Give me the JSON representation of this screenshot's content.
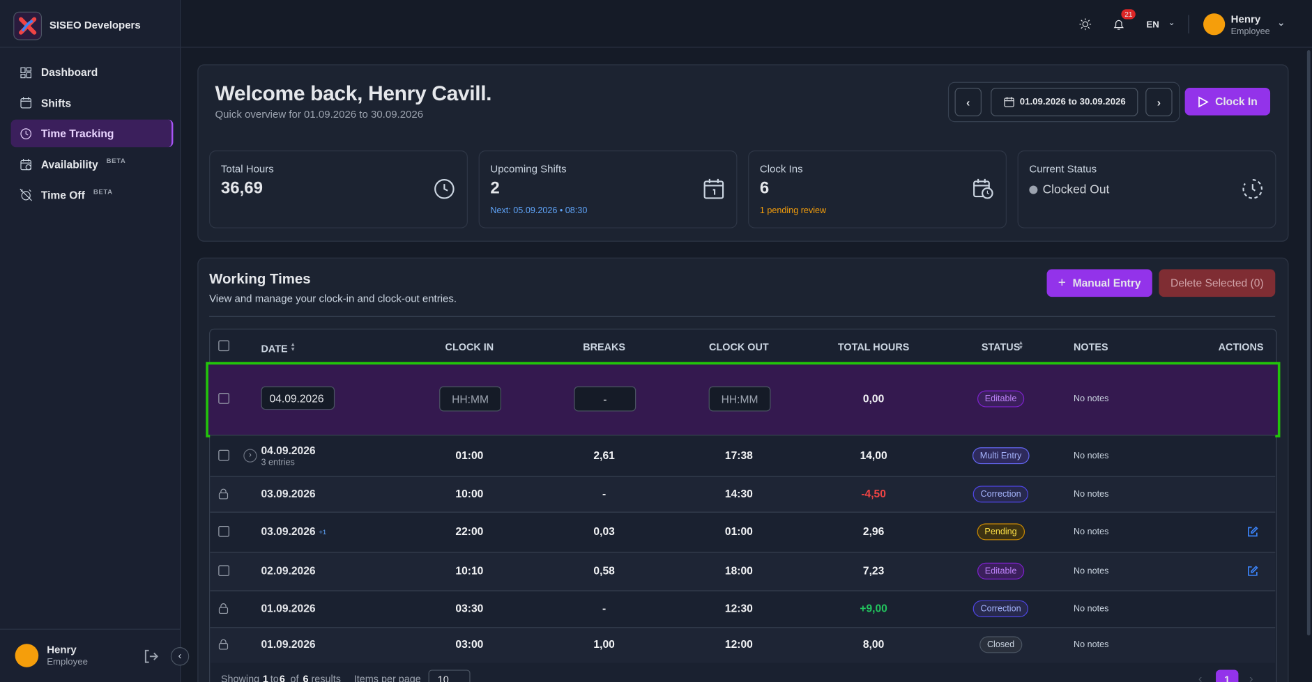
{
  "sidebar": {
    "brand": "SISEO Developers",
    "nav": [
      {
        "label": "Dashboard"
      },
      {
        "label": "Shifts"
      },
      {
        "label": "Time Tracking",
        "active": true
      },
      {
        "label": "Availability",
        "badge": "BETA"
      },
      {
        "label": "Time Off",
        "badge": "BETA"
      }
    ],
    "user": {
      "name": "Henry",
      "role": "Employee"
    }
  },
  "header": {
    "notifications": "21",
    "language": "EN",
    "user": {
      "name": "Henry",
      "role": "Employee"
    }
  },
  "welcome": {
    "title": "Welcome back, Henry Cavill.",
    "subtitle": "Quick overview for 01.09.2026 to 30.09.2026",
    "date_range": "01.09.2026 to 30.09.2026",
    "clock_in": "Clock In"
  },
  "stats": [
    {
      "label": "Total Hours",
      "value": "36,69"
    },
    {
      "label": "Upcoming Shifts",
      "value": "2",
      "note": "Next: 05.09.2026 • 08:30",
      "note_color": "#60a5fa"
    },
    {
      "label": "Clock Ins",
      "value": "6",
      "note": "1 pending review",
      "note_color": "#f59e0b"
    },
    {
      "label": "Current Status",
      "value": "Clocked Out"
    }
  ],
  "working_times": {
    "title": "Working Times",
    "subtitle": "View and manage your clock-in and clock-out entries.",
    "manual_entry": "Manual Entry",
    "delete_selected": "Delete Selected (0)",
    "columns": [
      "DATE",
      "CLOCK IN",
      "BREAKS",
      "CLOCK OUT",
      "TOTAL HOURS",
      "STATUS",
      "NOTES",
      "ACTIONS"
    ],
    "edit_row": {
      "date": "04.09.2026",
      "clock_in": "HH:MM",
      "breaks": "-",
      "clock_out": "HH:MM",
      "total": "0,00",
      "status": "Editable",
      "notes": "No notes"
    },
    "rows": [
      {
        "date": "04.09.2026",
        "sub": "3 entries",
        "clock_in": "01:00",
        "breaks": "2,61",
        "clock_out": "17:38",
        "total": "14,00",
        "status": "Multi Entry",
        "notes": "No notes",
        "expandable": true
      },
      {
        "date": "03.09.2026",
        "clock_in": "10:00",
        "breaks": "-",
        "clock_out": "14:30",
        "total": "-4,50",
        "total_color": "#ef4444",
        "status": "Correction",
        "notes": "No notes",
        "locked": true
      },
      {
        "date": "03.09.2026",
        "tag": "+1",
        "clock_in": "22:00",
        "breaks": "0,03",
        "clock_out": "01:00",
        "total": "2,96",
        "status": "Pending",
        "notes": "No notes",
        "editable": true
      },
      {
        "date": "02.09.2026",
        "clock_in": "10:10",
        "breaks": "0,58",
        "clock_out": "18:00",
        "total": "7,23",
        "status": "Editable",
        "notes": "No notes",
        "editable": true
      },
      {
        "date": "01.09.2026",
        "clock_in": "03:30",
        "breaks": "-",
        "clock_out": "12:30",
        "total": "+9,00",
        "total_color": "#22c55e",
        "status": "Correction",
        "notes": "No notes",
        "locked": true
      },
      {
        "date": "01.09.2026",
        "clock_in": "03:00",
        "breaks": "1,00",
        "clock_out": "12:00",
        "total": "8,00",
        "status": "Closed",
        "notes": "No notes",
        "locked": true
      }
    ],
    "footer": {
      "showing": "Showing",
      "from": "1",
      "to_word": "to",
      "to": "6",
      "of_word": "of",
      "total": "6",
      "results": "results",
      "per_page_label": "Items per page",
      "per_page": "10",
      "page": "1"
    }
  }
}
